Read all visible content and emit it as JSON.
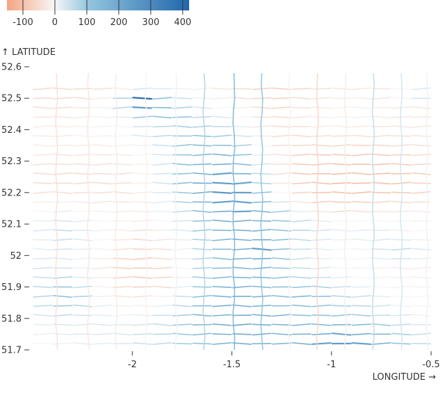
{
  "chart_data": {
    "type": "heatmap",
    "title": "",
    "xlabel": "LONGITUDE →",
    "ylabel": "↑ LATITUDE",
    "xlim": [
      -2.5,
      -0.5
    ],
    "ylim": [
      51.7,
      52.6
    ],
    "xticks": [
      -2,
      -1.5,
      -1,
      -0.5
    ],
    "xtick_labels": [
      "-2",
      "-1.5",
      "-1",
      "-0.5"
    ],
    "yticks": [
      51.7,
      51.8,
      51.9,
      52,
      52.1,
      52.2,
      52.3,
      52.4,
      52.5,
      52.6
    ],
    "ytick_labels": [
      "51.7",
      "51.8",
      "51.9",
      "52",
      "52.1",
      "52.2",
      "52.3",
      "52.4",
      "52.5",
      "52.6"
    ],
    "grid": false,
    "legend": {
      "type": "diverging color scale",
      "domain": [
        -150,
        420
      ],
      "ticks": [
        -100,
        0,
        100,
        200,
        300,
        400
      ],
      "tick_labels": [
        "-100",
        "0",
        "100",
        "200",
        "300",
        "400"
      ],
      "placement": "top-left"
    },
    "colors": {
      "negative": "#f4a582",
      "zero": "#f7f7f7",
      "positive": "#2166ac"
    },
    "row_lats": [
      51.72,
      51.75,
      51.78,
      51.81,
      51.84,
      51.87,
      51.9,
      51.93,
      51.96,
      51.99,
      52.02,
      52.05,
      52.08,
      52.11,
      52.14,
      52.17,
      52.2,
      52.23,
      52.26,
      52.29,
      52.32,
      52.35,
      52.38,
      52.41,
      52.44,
      52.47,
      52.5,
      52.53
    ],
    "segment_lons": [
      -2.45,
      -2.35,
      -2.25,
      -2.15,
      -2.05,
      -1.95,
      -1.85,
      -1.75,
      -1.65,
      -1.55,
      -1.45,
      -1.35,
      -1.25,
      -1.15,
      -1.05,
      -0.95,
      -0.85,
      -0.75,
      -0.65,
      -0.55
    ],
    "values": [
      [
        0,
        10,
        20,
        20,
        30,
        50,
        60,
        90,
        110,
        150,
        180,
        170,
        150,
        180,
        220,
        240,
        220,
        180,
        110,
        60
      ],
      [
        10,
        20,
        30,
        30,
        30,
        50,
        70,
        100,
        140,
        180,
        200,
        190,
        160,
        170,
        200,
        210,
        190,
        150,
        90,
        50
      ],
      [
        20,
        30,
        30,
        30,
        30,
        40,
        60,
        100,
        150,
        180,
        200,
        190,
        160,
        150,
        150,
        160,
        140,
        100,
        60,
        30
      ],
      [
        40,
        60,
        40,
        20,
        10,
        20,
        50,
        90,
        150,
        180,
        190,
        180,
        150,
        130,
        120,
        110,
        90,
        60,
        30,
        10
      ],
      [
        60,
        100,
        70,
        20,
        -10,
        -10,
        20,
        70,
        140,
        180,
        190,
        170,
        140,
        130,
        110,
        90,
        70,
        40,
        10,
        0
      ],
      [
        70,
        120,
        80,
        10,
        -30,
        -40,
        -10,
        50,
        120,
        170,
        180,
        160,
        130,
        150,
        120,
        80,
        50,
        20,
        0,
        0
      ],
      [
        60,
        110,
        60,
        -10,
        -50,
        -70,
        -50,
        20,
        100,
        160,
        170,
        150,
        120,
        120,
        90,
        50,
        20,
        0,
        -10,
        -10
      ],
      [
        50,
        70,
        30,
        -20,
        -60,
        -80,
        -60,
        10,
        90,
        150,
        160,
        150,
        110,
        80,
        50,
        20,
        0,
        -10,
        -10,
        -20
      ],
      [
        40,
        40,
        10,
        -30,
        -70,
        -90,
        -60,
        0,
        80,
        140,
        160,
        160,
        110,
        60,
        30,
        0,
        -10,
        -10,
        -20,
        -20
      ],
      [
        30,
        30,
        10,
        -20,
        -60,
        -80,
        -50,
        10,
        70,
        130,
        160,
        200,
        110,
        50,
        20,
        0,
        0,
        20,
        40,
        20
      ],
      [
        20,
        40,
        20,
        -10,
        -40,
        -70,
        -40,
        10,
        70,
        140,
        170,
        230,
        120,
        50,
        20,
        0,
        10,
        40,
        60,
        30
      ],
      [
        20,
        50,
        30,
        0,
        -30,
        -60,
        -30,
        20,
        80,
        150,
        180,
        200,
        120,
        60,
        30,
        10,
        20,
        30,
        30,
        10
      ],
      [
        30,
        60,
        30,
        10,
        -20,
        -40,
        -20,
        30,
        100,
        160,
        190,
        170,
        120,
        70,
        40,
        20,
        20,
        20,
        10,
        0
      ],
      [
        20,
        40,
        20,
        0,
        -10,
        -20,
        0,
        40,
        120,
        180,
        200,
        170,
        110,
        60,
        20,
        0,
        0,
        0,
        0,
        -10
      ],
      [
        0,
        20,
        0,
        -10,
        -20,
        -20,
        10,
        60,
        140,
        200,
        210,
        160,
        90,
        20,
        -30,
        -50,
        -40,
        -30,
        -30,
        -20
      ],
      [
        -20,
        -10,
        -20,
        -30,
        -30,
        -20,
        20,
        80,
        160,
        230,
        220,
        140,
        40,
        -30,
        -70,
        -80,
        -70,
        -60,
        -50,
        -40
      ],
      [
        -40,
        -40,
        -40,
        -40,
        -40,
        -20,
        30,
        100,
        180,
        260,
        230,
        110,
        0,
        -60,
        -90,
        -100,
        -100,
        -90,
        -80,
        -60
      ],
      [
        -50,
        -50,
        -50,
        -50,
        -40,
        -10,
        40,
        120,
        190,
        250,
        210,
        80,
        -30,
        -80,
        -100,
        -110,
        -110,
        -100,
        -90,
        -70
      ],
      [
        -50,
        -50,
        -50,
        -50,
        -40,
        -10,
        40,
        120,
        180,
        220,
        180,
        60,
        -40,
        -90,
        -100,
        -100,
        -100,
        -100,
        -90,
        -70
      ],
      [
        -40,
        -40,
        -40,
        -40,
        -30,
        -10,
        40,
        120,
        160,
        180,
        140,
        40,
        -40,
        -80,
        -90,
        -90,
        -90,
        -90,
        -80,
        -60
      ],
      [
        -30,
        -30,
        -30,
        -30,
        -20,
        0,
        40,
        110,
        150,
        160,
        110,
        20,
        -40,
        -70,
        -80,
        -80,
        -80,
        -80,
        -70,
        -50
      ],
      [
        -20,
        -20,
        -20,
        -20,
        -10,
        10,
        50,
        110,
        140,
        130,
        80,
        0,
        -40,
        -60,
        -60,
        -60,
        -60,
        -60,
        -50,
        -40
      ],
      [
        -20,
        -20,
        -10,
        -10,
        0,
        30,
        60,
        100,
        110,
        90,
        40,
        -20,
        -50,
        -50,
        -40,
        -40,
        -40,
        -40,
        -40,
        -30
      ],
      [
        -20,
        -20,
        -10,
        -10,
        0,
        40,
        70,
        90,
        80,
        60,
        20,
        -30,
        -50,
        -40,
        -20,
        -20,
        -20,
        -30,
        -30,
        -30
      ],
      [
        -30,
        -30,
        -20,
        -10,
        20,
        100,
        130,
        110,
        60,
        30,
        0,
        -40,
        -50,
        -30,
        -10,
        -10,
        -10,
        -20,
        -30,
        -30
      ],
      [
        -40,
        -40,
        -30,
        -10,
        70,
        250,
        150,
        80,
        30,
        0,
        -20,
        -50,
        -60,
        -40,
        -20,
        -10,
        -10,
        -20,
        -30,
        -30
      ],
      [
        -50,
        -50,
        -40,
        -20,
        80,
        400,
        120,
        50,
        10,
        -20,
        -40,
        -60,
        -70,
        -50,
        -30,
        -20,
        -20,
        -30,
        0,
        40
      ],
      [
        -50,
        -50,
        -50,
        -40,
        -20,
        40,
        30,
        10,
        -10,
        -30,
        -50,
        -70,
        -70,
        -60,
        -40,
        -30,
        -30,
        -30,
        0,
        30
      ]
    ],
    "col_lons": [
      -2.38,
      -2.22,
      -2.08,
      -1.93,
      -1.78,
      -1.64,
      -1.49,
      -1.35,
      -1.21,
      -1.07,
      -0.93,
      -0.79,
      -0.65,
      -0.52
    ],
    "col_values": [
      -40,
      -30,
      -20,
      -10,
      10,
      80,
      160,
      120,
      -10,
      -60,
      -20,
      60,
      40,
      10
    ]
  }
}
